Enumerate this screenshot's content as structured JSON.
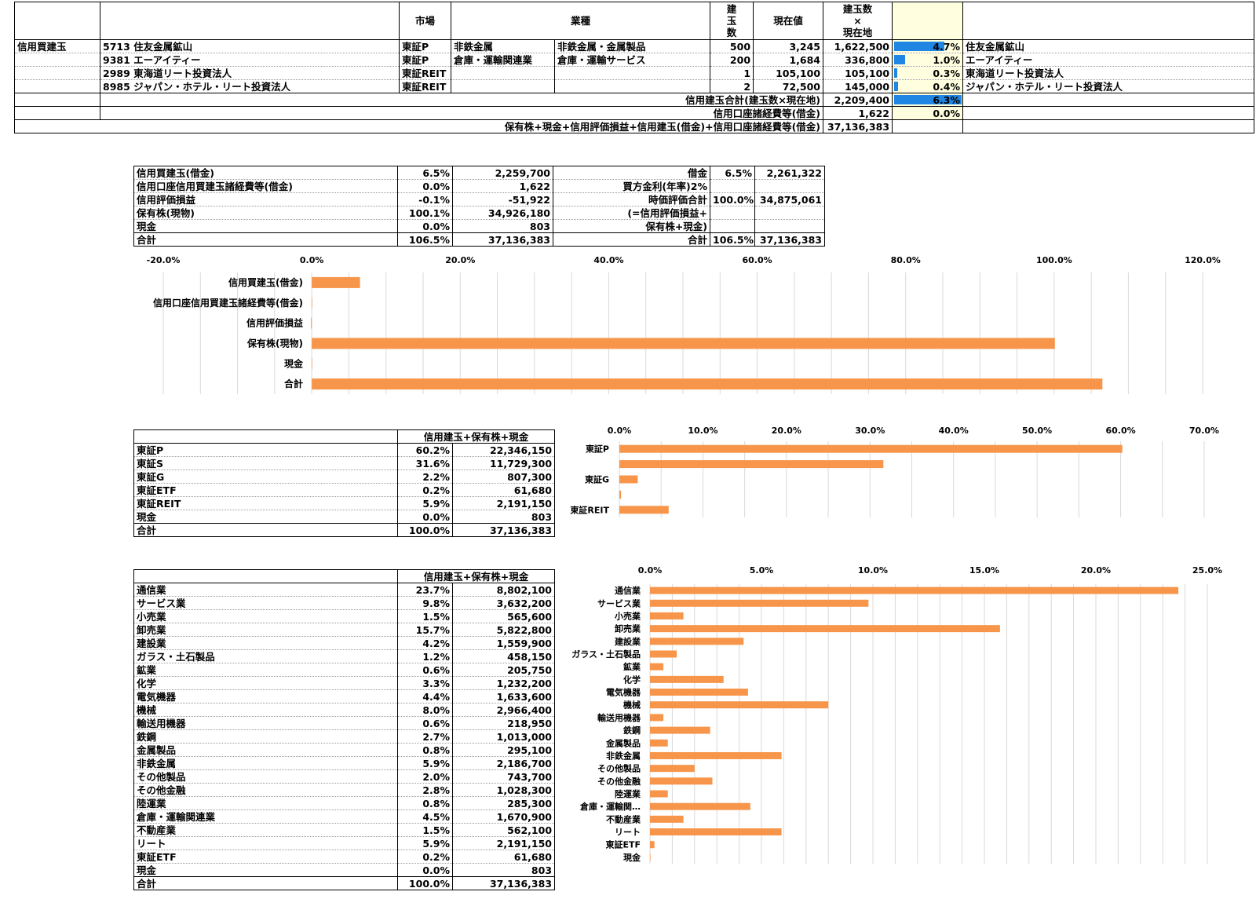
{
  "top": {
    "headers": {
      "market": "市場",
      "industry": "業種",
      "qty": "建\n玉\n数",
      "price": "現在値",
      "value": "建玉数\n×\n現在地"
    },
    "group_label": "信用買建玉",
    "rows": [
      {
        "code": "5713",
        "name": "住友金属鉱山",
        "market": "東証P",
        "ind1": "非鉄金属",
        "ind2": "非鉄金属・金属製品",
        "qty": "500",
        "price": "3,245",
        "value": "1,622,500",
        "pct": "4.7%",
        "pct_value": 4.7,
        "right_name": "住友金属鉱山"
      },
      {
        "code": "9381",
        "name": "エーアイティー",
        "market": "東証P",
        "ind1": "倉庫・運輸関連業",
        "ind2": "倉庫・運輸サービス",
        "qty": "200",
        "price": "1,684",
        "value": "336,800",
        "pct": "1.0%",
        "pct_value": 1.0,
        "right_name": "エーアイティー"
      },
      {
        "code": "2989",
        "name": "東海道リート投資法人",
        "market": "東証REIT",
        "ind1": "",
        "ind2": "",
        "qty": "1",
        "price": "105,100",
        "value": "105,100",
        "pct": "0.3%",
        "pct_value": 0.3,
        "right_name": "東海道リート投資法人"
      },
      {
        "code": "8985",
        "name": "ジャパン・ホテル・リート投資法人",
        "market": "東証REIT",
        "ind1": "",
        "ind2": "",
        "qty": "2",
        "price": "72,500",
        "value": "145,000",
        "pct": "0.4%",
        "pct_value": 0.4,
        "right_name": "ジャパン・ホテル・リート投資法人"
      }
    ],
    "sum1": {
      "label": "信用建玉合計(建玉数×現在地)",
      "value": "2,209,400",
      "pct": "6.3%",
      "pct_value": 6.3
    },
    "sum2": {
      "label": "信用口座諸経費等(借金)",
      "value": "1,622",
      "pct": "0.0%",
      "pct_value": 0.0
    },
    "sum3": {
      "label": "保有株+現金+信用評価損益+信用建玉(借金)+信用口座諸経費等(借金)",
      "value": "37,136,383"
    }
  },
  "balance": {
    "rows": [
      {
        "label": "信用買建玉(借金)",
        "pct": "6.5%",
        "value": "2,259,700"
      },
      {
        "label": "信用口座信用買建玉諸経費等(借金)",
        "pct": "0.0%",
        "value": "1,622"
      },
      {
        "label": "信用評価損益",
        "pct": "-0.1%",
        "value": "-51,922"
      },
      {
        "label": "保有株(現物)",
        "pct": "100.1%",
        "value": "34,926,180"
      },
      {
        "label": "現金",
        "pct": "0.0%",
        "value": "803"
      },
      {
        "label": "合計",
        "pct": "106.5%",
        "value": "37,136,383"
      }
    ],
    "right": {
      "debt_label": "借金",
      "debt_pct": "6.5%",
      "debt_value": "2,261,322",
      "interest_label": "買方金利(年率)2%",
      "mv_label": "時価評価合計",
      "mv_pct": "100.0%",
      "mv_value": "34,875,061",
      "mv_note1": "(=信用評価損益+",
      "mv_note2": "保有株+現金)",
      "total_label": "合計",
      "total_pct": "106.5%",
      "total_value": "37,136,383"
    }
  },
  "market_table": {
    "header": "信用建玉+保有株+現金",
    "rows": [
      {
        "label": "東証P",
        "pct": "60.2%",
        "value": "22,346,150"
      },
      {
        "label": "東証S",
        "pct": "31.6%",
        "value": "11,729,300"
      },
      {
        "label": "東証G",
        "pct": "2.2%",
        "value": "807,300"
      },
      {
        "label": "東証ETF",
        "pct": "0.2%",
        "value": "61,680"
      },
      {
        "label": "東証REIT",
        "pct": "5.9%",
        "value": "2,191,150"
      },
      {
        "label": "現金",
        "pct": "0.0%",
        "value": "803"
      },
      {
        "label": "合計",
        "pct": "100.0%",
        "value": "37,136,383"
      }
    ]
  },
  "industry_table": {
    "header": "信用建玉+保有株+現金",
    "rows": [
      {
        "label": "通信業",
        "pct": "23.7%",
        "value": "8,802,100"
      },
      {
        "label": "サービス業",
        "pct": "9.8%",
        "value": "3,632,200"
      },
      {
        "label": "小売業",
        "pct": "1.5%",
        "value": "565,600"
      },
      {
        "label": "卸売業",
        "pct": "15.7%",
        "value": "5,822,800"
      },
      {
        "label": "建設業",
        "pct": "4.2%",
        "value": "1,559,900"
      },
      {
        "label": "ガラス・土石製品",
        "pct": "1.2%",
        "value": "458,150"
      },
      {
        "label": "鉱業",
        "pct": "0.6%",
        "value": "205,750"
      },
      {
        "label": "化学",
        "pct": "3.3%",
        "value": "1,232,200"
      },
      {
        "label": "電気機器",
        "pct": "4.4%",
        "value": "1,633,600"
      },
      {
        "label": "機械",
        "pct": "8.0%",
        "value": "2,966,400"
      },
      {
        "label": "輸送用機器",
        "pct": "0.6%",
        "value": "218,950"
      },
      {
        "label": "鉄鋼",
        "pct": "2.7%",
        "value": "1,013,000"
      },
      {
        "label": "金属製品",
        "pct": "0.8%",
        "value": "295,100"
      },
      {
        "label": "非鉄金属",
        "pct": "5.9%",
        "value": "2,186,700"
      },
      {
        "label": "その他製品",
        "pct": "2.0%",
        "value": "743,700"
      },
      {
        "label": "その他金融",
        "pct": "2.8%",
        "value": "1,028,300"
      },
      {
        "label": "陸運業",
        "pct": "0.8%",
        "value": "285,300"
      },
      {
        "label": "倉庫・運輸関連業",
        "pct": "4.5%",
        "value": "1,670,900"
      },
      {
        "label": "不動産業",
        "pct": "1.5%",
        "value": "562,100"
      },
      {
        "label": "リート",
        "pct": "5.9%",
        "value": "2,191,150"
      },
      {
        "label": "東証ETF",
        "pct": "0.2%",
        "value": "61,680"
      },
      {
        "label": "現金",
        "pct": "0.0%",
        "value": "803"
      },
      {
        "label": "合計",
        "pct": "100.0%",
        "value": "37,136,383"
      }
    ]
  },
  "colors": {
    "bar": "#f7964b",
    "data_bar": "#1f86e3",
    "highlight": "#ffffe0",
    "grid": "#d9d9d9"
  },
  "chart_data": [
    {
      "type": "bar",
      "orientation": "horizontal",
      "categories": [
        "信用買建玉(借金)",
        "信用口座信用買建玉諸経費等(借金)",
        "信用評価損益",
        "保有株(現物)",
        "現金",
        "合計"
      ],
      "values": [
        6.5,
        0.0,
        -0.1,
        100.1,
        0.0,
        106.5
      ],
      "xlim": [
        -20,
        120
      ],
      "ticks": [
        "-20.0%",
        "0.0%",
        "20.0%",
        "40.0%",
        "60.0%",
        "80.0%",
        "100.0%",
        "120.0%"
      ],
      "grid": true,
      "legend": "none"
    },
    {
      "type": "bar",
      "orientation": "horizontal",
      "categories": [
        "東証P",
        "東証S",
        "東証G",
        "東証ETF",
        "東証REIT"
      ],
      "shown_labels": [
        "東証P",
        "",
        "東証G",
        "",
        "東証REIT"
      ],
      "values": [
        60.2,
        31.6,
        2.2,
        0.2,
        5.9
      ],
      "xlim": [
        0,
        70
      ],
      "ticks": [
        "0.0%",
        "10.0%",
        "20.0%",
        "30.0%",
        "40.0%",
        "50.0%",
        "60.0%",
        "70.0%"
      ],
      "grid": true,
      "legend": "none"
    },
    {
      "type": "bar",
      "orientation": "horizontal",
      "categories": [
        "通信業",
        "サービス業",
        "小売業",
        "卸売業",
        "建設業",
        "ガラス・土石製品",
        "鉱業",
        "化学",
        "電気機器",
        "機械",
        "輸送用機器",
        "鉄鋼",
        "金属製品",
        "非鉄金属",
        "その他製品",
        "その他金融",
        "陸運業",
        "倉庫・運輸関…",
        "不動産業",
        "リート",
        "東証ETF",
        "現金"
      ],
      "values": [
        23.7,
        9.8,
        1.5,
        15.7,
        4.2,
        1.2,
        0.6,
        3.3,
        4.4,
        8.0,
        0.6,
        2.7,
        0.8,
        5.9,
        2.0,
        2.8,
        0.8,
        4.5,
        1.5,
        5.9,
        0.2,
        0.0
      ],
      "xlim": [
        0,
        25
      ],
      "ticks": [
        "0.0%",
        "5.0%",
        "10.0%",
        "15.0%",
        "20.0%",
        "25.0%"
      ],
      "grid": true,
      "legend": "none"
    }
  ]
}
